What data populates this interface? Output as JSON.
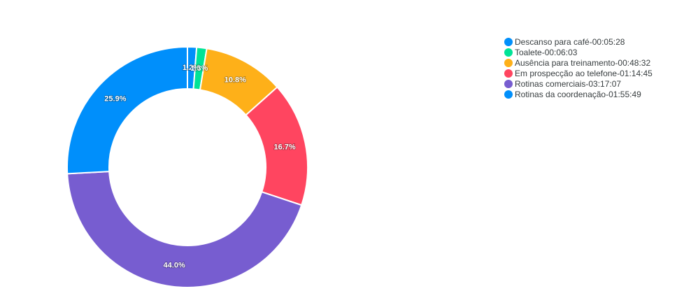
{
  "chart_data": {
    "type": "pie",
    "donut": true,
    "legend_position": "top-right",
    "slices": [
      {
        "label": "Descanso para café",
        "duration": "00:05:28",
        "value": 328,
        "percent_label": "1.2%",
        "color": "#008ffb"
      },
      {
        "label": "Toalete",
        "duration": "00:06:03",
        "value": 363,
        "percent_label": "1.3%",
        "color": "#00e396"
      },
      {
        "label": "Ausência para treinamento",
        "duration": "00:48:32",
        "value": 2912,
        "percent_label": "10.8%",
        "color": "#feb019"
      },
      {
        "label": "Em prospecção ao telefone",
        "duration": "01:14:45",
        "value": 4485,
        "percent_label": "16.7%",
        "color": "#ff4560"
      },
      {
        "label": "Rotinas comerciais",
        "duration": "03:17:07",
        "value": 11827,
        "percent_label": "44.0%",
        "color": "#775dd0"
      },
      {
        "label": "Rotinas da coordenação",
        "duration": "01:55:49",
        "value": 6949,
        "percent_label": "25.9%",
        "color": "#008ffb"
      }
    ]
  }
}
